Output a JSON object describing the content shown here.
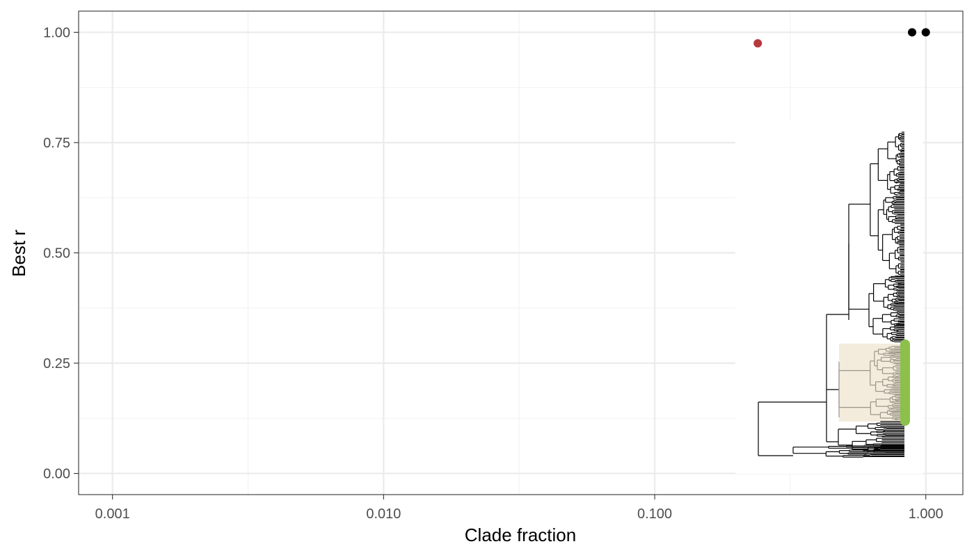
{
  "chart_data": {
    "type": "scatter",
    "title": "",
    "xlabel": "Clade fraction",
    "ylabel": "Best r",
    "x_scale": "log10",
    "xlim": [
      0.00075,
      1.37
    ],
    "ylim": [
      -0.048,
      1.048
    ],
    "x_ticks": [
      0.001,
      0.01,
      0.1,
      1
    ],
    "x_tick_labels": [
      "0.001",
      "0.010",
      "0.100",
      "1.000"
    ],
    "y_ticks": [
      0,
      0.25,
      0.5,
      0.75,
      1
    ],
    "y_tick_labels": [
      "0.00",
      "0.25",
      "0.50",
      "0.75",
      "1.00"
    ],
    "grid": true,
    "legend": "none",
    "points": [
      {
        "x": 0.24,
        "y": 0.975,
        "color": "#b5393e"
      },
      {
        "x": 0.89,
        "y": 1.0,
        "color": "#000000"
      },
      {
        "x": 1.0,
        "y": 1.0,
        "color": "#000000"
      }
    ],
    "inset": {
      "type": "tree",
      "branch_color": "#000000",
      "highlight_clade_fill": "#f3ecdc",
      "highlight_branch_color": "#9a9488",
      "clade_bar_color": "#8cc04a"
    },
    "colors": {
      "panel_border": "#333333",
      "grid_major": "#ebebeb",
      "grid_minor": "#f2f2f2",
      "tick_text": "#4d4d4d",
      "axis_title": "#000000"
    }
  }
}
